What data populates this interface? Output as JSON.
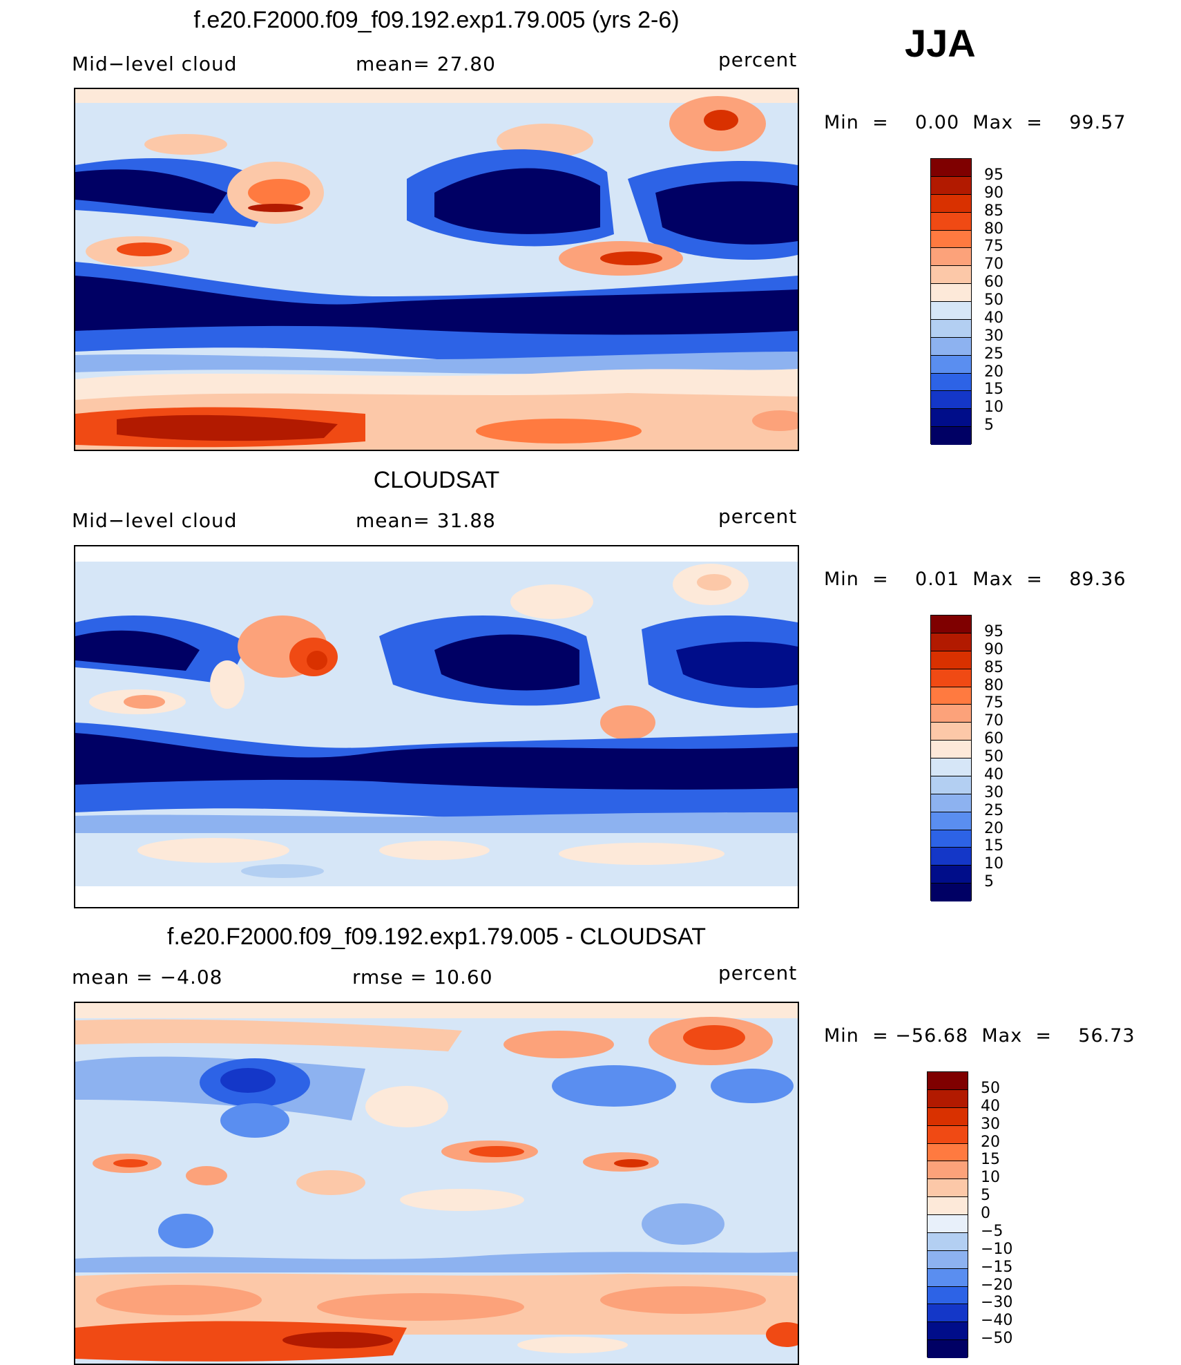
{
  "season": "JJA",
  "panels": [
    {
      "title": "f.e20.F2000.f09_f09.192.exp1.79.005 (yrs 2-6)",
      "left_label": "Mid−level cloud",
      "center_label": "mean=   27.80",
      "right_label": "percent",
      "minmax": "Min  =    0.00  Max  =    99.57",
      "levels": [
        "95",
        "90",
        "85",
        "80",
        "75",
        "70",
        "60",
        "50",
        "40",
        "30",
        "25",
        "20",
        "15",
        "10",
        "5"
      ],
      "colors": [
        "#7f0000",
        "#b21a00",
        "#d93100",
        "#f04a14",
        "#ff7a40",
        "#fca27a",
        "#fcc8a8",
        "#fde9d9",
        "#d6e6f7",
        "#b3cff2",
        "#8db2f0",
        "#5a8ef0",
        "#2d63e6",
        "#1437c8",
        "#000d8a",
        "#000064"
      ]
    },
    {
      "title": "CLOUDSAT",
      "left_label": "Mid−level cloud",
      "center_label": "mean=   31.88",
      "right_label": "percent",
      "minmax": "Min  =    0.01  Max  =    89.36",
      "levels": [
        "95",
        "90",
        "85",
        "80",
        "75",
        "70",
        "60",
        "50",
        "40",
        "30",
        "25",
        "20",
        "15",
        "10",
        "5"
      ],
      "colors": [
        "#7f0000",
        "#b21a00",
        "#d93100",
        "#f04a14",
        "#ff7a40",
        "#fca27a",
        "#fcc8a8",
        "#fde9d9",
        "#d6e6f7",
        "#b3cff2",
        "#8db2f0",
        "#5a8ef0",
        "#2d63e6",
        "#1437c8",
        "#000d8a",
        "#000064"
      ]
    },
    {
      "title": "f.e20.F2000.f09_f09.192.exp1.79.005 - CLOUDSAT",
      "left_label": "mean  =    −4.08",
      "center_label": "rmse  =    10.60",
      "right_label": "percent",
      "minmax": "Min  = −56.68  Max  =    56.73",
      "levels": [
        "50",
        "40",
        "30",
        "20",
        "15",
        "10",
        "5",
        "0",
        "−5",
        "−10",
        "−15",
        "−20",
        "−30",
        "−40",
        "−50"
      ],
      "colors": [
        "#7f0000",
        "#b21a00",
        "#d93100",
        "#f04a14",
        "#ff7a40",
        "#fca27a",
        "#fcc8a8",
        "#fde9d9",
        "#e8f0fa",
        "#b3cff2",
        "#8db2f0",
        "#5a8ef0",
        "#2d63e6",
        "#1437c8",
        "#000d8a",
        "#000064"
      ]
    }
  ]
}
